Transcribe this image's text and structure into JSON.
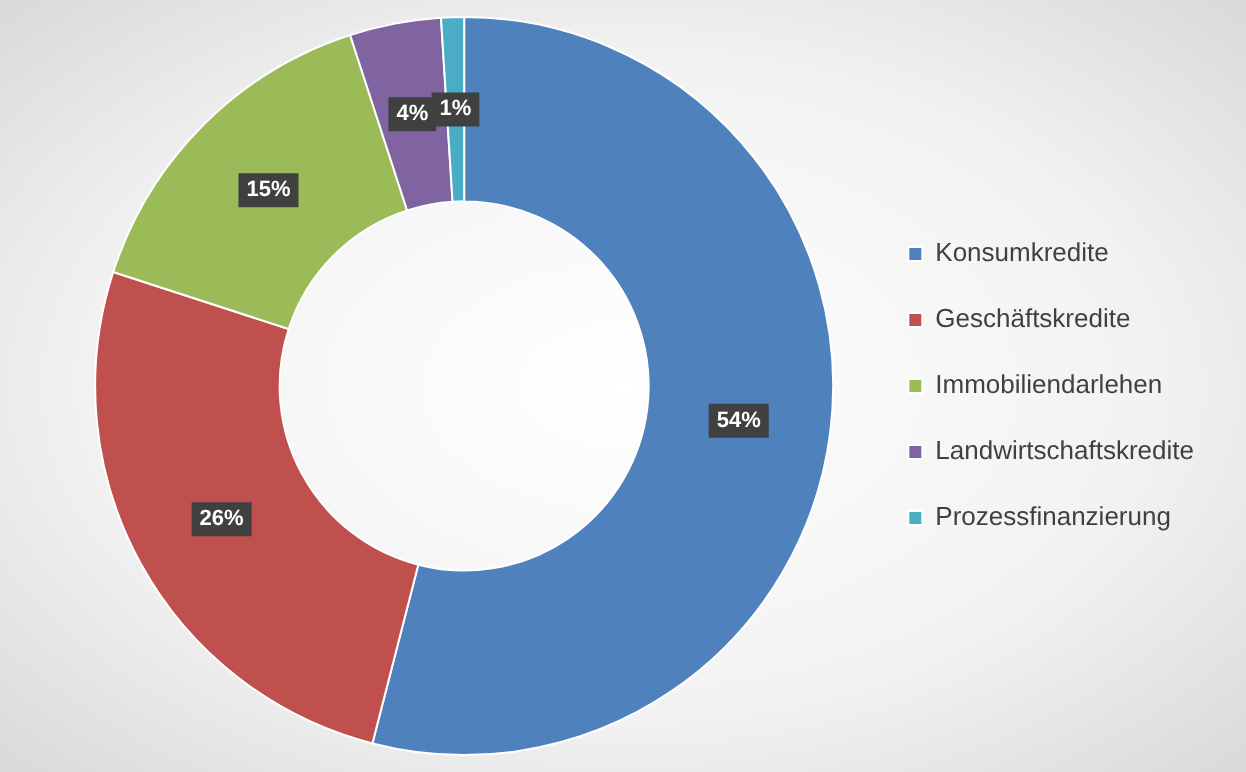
{
  "chart_data": {
    "type": "donut",
    "categories": [
      "Konsumkredite",
      "Geschäftskredite",
      "Immobiliendarlehen",
      "Landwirtschaftskredite",
      "Prozessfinanzierung"
    ],
    "values": [
      54,
      26,
      15,
      4,
      1
    ],
    "colors": [
      "#4f81bd",
      "#c0504d",
      "#9bbb59",
      "#8064a2",
      "#4bacc6"
    ],
    "value_labels": [
      "54%",
      "26%",
      "15%",
      "4%",
      "1%"
    ],
    "legend": "right"
  }
}
